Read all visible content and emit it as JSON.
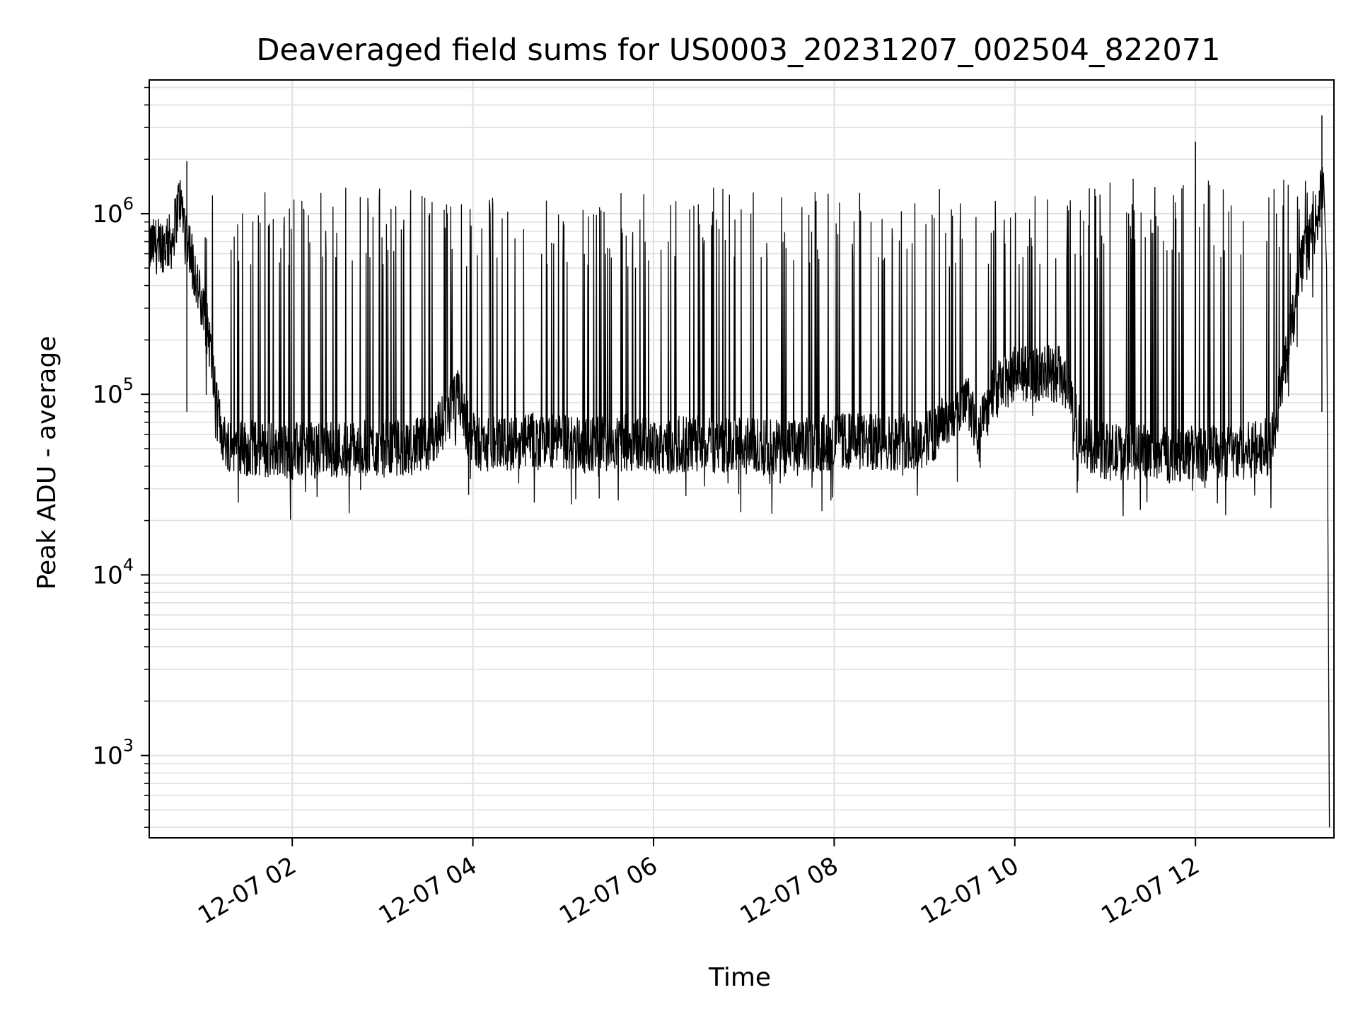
{
  "chart_data": {
    "type": "line",
    "title": "Deaveraged field sums for US0003_20231207_002504_822071",
    "xlabel": "Time",
    "ylabel": "Peak ADU - average",
    "yscale": "log",
    "ylim": [
      350,
      5500000
    ],
    "xlim": [
      "12-07 00:25",
      "12-07 13:32"
    ],
    "grid": true,
    "line_color": "#000000",
    "grid_color": "#e0e0e0",
    "x_ticks": [
      {
        "label": "12-07 02",
        "value": "12-07 02:00"
      },
      {
        "label": "12-07 04",
        "value": "12-07 04:00"
      },
      {
        "label": "12-07 06",
        "value": "12-07 06:00"
      },
      {
        "label": "12-07 08",
        "value": "12-07 08:00"
      },
      {
        "label": "12-07 10",
        "value": "12-07 10:00"
      },
      {
        "label": "12-07 12",
        "value": "12-07 12:00"
      }
    ],
    "y_ticks": [
      {
        "base": "10",
        "exp": "3",
        "value": 1000
      },
      {
        "base": "10",
        "exp": "4",
        "value": 10000
      },
      {
        "base": "10",
        "exp": "5",
        "value": 100000
      },
      {
        "base": "10",
        "exp": "6",
        "value": 1000000
      }
    ],
    "series": [
      {
        "x": [
          "12-07 00:25",
          "12-07 00:40",
          "12-07 00:45",
          "12-07 00:50",
          "12-07 01:00",
          "12-07 01:05",
          "12-07 01:10",
          "12-07 01:15",
          "12-07 01:30",
          "12-07 02:00",
          "12-07 02:30",
          "12-07 03:00",
          "12-07 03:30",
          "12-07 03:50",
          "12-07 04:00",
          "12-07 04:15",
          "12-07 04:40",
          "12-07 05:00",
          "12-07 05:30",
          "12-07 05:50",
          "12-07 06:00",
          "12-07 06:30",
          "12-07 07:00",
          "12-07 07:30",
          "12-07 08:00",
          "12-07 08:30",
          "12-07 09:00",
          "12-07 09:30",
          "12-07 09:35",
          "12-07 09:45",
          "12-07 10:00",
          "12-07 10:30",
          "12-07 10:45",
          "12-07 11:00",
          "12-07 11:30",
          "12-07 12:00",
          "12-07 12:30",
          "12-07 12:50",
          "12-07 13:00",
          "12-07 13:10",
          "12-07 13:20",
          "12-07 13:25",
          "12-07 13:29"
        ],
        "y": [
          650000,
          700000,
          1200000,
          800000,
          300000,
          200000,
          80000,
          55000,
          50000,
          48000,
          50000,
          50000,
          52000,
          95000,
          55000,
          52000,
          55000,
          54000,
          53000,
          55000,
          52000,
          53000,
          52000,
          50000,
          55000,
          54000,
          55000,
          90000,
          55000,
          100000,
          130000,
          130000,
          55000,
          48000,
          48000,
          47000,
          48000,
          52000,
          150000,
          500000,
          900000,
          1500000,
          400
        ]
      }
    ],
    "peaks": [
      {
        "x": "12-07 00:50",
        "y": 1950000
      },
      {
        "x": "12-07 12:00",
        "y": 2500000
      },
      {
        "x": "12-07 13:24",
        "y": 3500000
      }
    ]
  }
}
